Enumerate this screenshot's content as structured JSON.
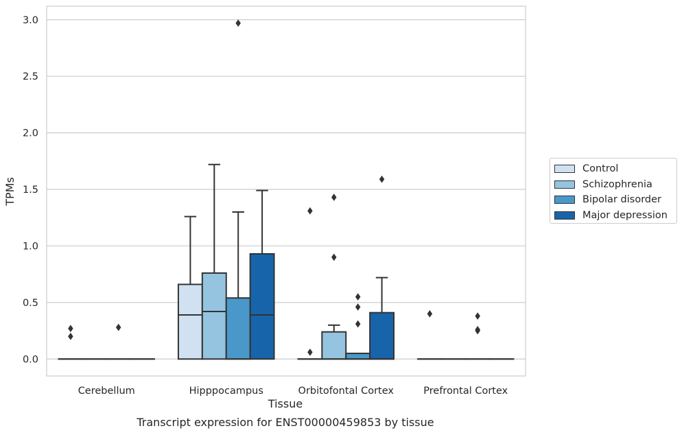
{
  "caption": "Transcript expression for ENST00000459853 by tissue",
  "chart_data": {
    "type": "box",
    "xlabel": "Tissue",
    "ylabel": "TPMs",
    "ylim": [
      -0.15,
      3.12
    ],
    "yticks": [
      "0.0",
      "0.5",
      "1.0",
      "1.5",
      "2.0",
      "2.5",
      "3.0"
    ],
    "grid": "horizontal",
    "legend_position": "right",
    "categories": [
      "Cerebellum",
      "Hipppocampus",
      "Orbitofontal Cortex",
      "Prefrontal Cortex"
    ],
    "series": [
      {
        "name": "Control",
        "color": "#d0e1f2",
        "boxes": [
          {
            "q1": 0,
            "median": 0,
            "q3": 0,
            "whisker_low": 0,
            "whisker_high": 0,
            "outliers": [
              0.2,
              0.27
            ]
          },
          {
            "q1": 0,
            "median": 0.39,
            "q3": 0.66,
            "whisker_low": 0,
            "whisker_high": 1.26,
            "outliers": []
          },
          {
            "q1": 0,
            "median": 0,
            "q3": 0,
            "whisker_low": 0,
            "whisker_high": 0,
            "outliers": [
              0.06,
              1.31
            ]
          },
          {
            "q1": 0,
            "median": 0,
            "q3": 0,
            "whisker_low": 0,
            "whisker_high": 0,
            "outliers": [
              0.4
            ]
          }
        ]
      },
      {
        "name": "Schizophrenia",
        "color": "#94c4df",
        "boxes": [
          {
            "q1": 0,
            "median": 0,
            "q3": 0,
            "whisker_low": 0,
            "whisker_high": 0,
            "outliers": []
          },
          {
            "q1": 0,
            "median": 0.42,
            "q3": 0.76,
            "whisker_low": 0,
            "whisker_high": 1.72,
            "outliers": []
          },
          {
            "q1": 0,
            "median": 0,
            "q3": 0.24,
            "whisker_low": 0,
            "whisker_high": 0.3,
            "outliers": [
              0.9,
              1.43
            ]
          },
          {
            "q1": 0,
            "median": 0,
            "q3": 0,
            "whisker_low": 0,
            "whisker_high": 0,
            "outliers": []
          }
        ]
      },
      {
        "name": "Bipolar disorder",
        "color": "#4a98c9",
        "boxes": [
          {
            "q1": 0,
            "median": 0,
            "q3": 0,
            "whisker_low": 0,
            "whisker_high": 0,
            "outliers": [
              0.28
            ]
          },
          {
            "q1": 0,
            "median": 0,
            "q3": 0.54,
            "whisker_low": 0,
            "whisker_high": 1.3,
            "outliers": [
              2.97
            ]
          },
          {
            "q1": 0,
            "median": 0,
            "q3": 0.05,
            "whisker_low": 0,
            "whisker_high": 0.05,
            "outliers": [
              0.31,
              0.46,
              0.55
            ]
          },
          {
            "q1": 0,
            "median": 0,
            "q3": 0,
            "whisker_low": 0,
            "whisker_high": 0,
            "outliers": [
              0.25,
              0.26,
              0.38
            ]
          }
        ]
      },
      {
        "name": "Major depression",
        "color": "#1764ab",
        "boxes": [
          {
            "q1": 0,
            "median": 0,
            "q3": 0,
            "whisker_low": 0,
            "whisker_high": 0,
            "outliers": []
          },
          {
            "q1": 0,
            "median": 0.39,
            "q3": 0.93,
            "whisker_low": 0,
            "whisker_high": 1.49,
            "outliers": []
          },
          {
            "q1": 0,
            "median": 0,
            "q3": 0.41,
            "whisker_low": 0,
            "whisker_high": 0.72,
            "outliers": [
              1.59
            ]
          },
          {
            "q1": 0,
            "median": 0,
            "q3": 0,
            "whisker_low": 0,
            "whisker_high": 0,
            "outliers": []
          }
        ]
      }
    ]
  }
}
